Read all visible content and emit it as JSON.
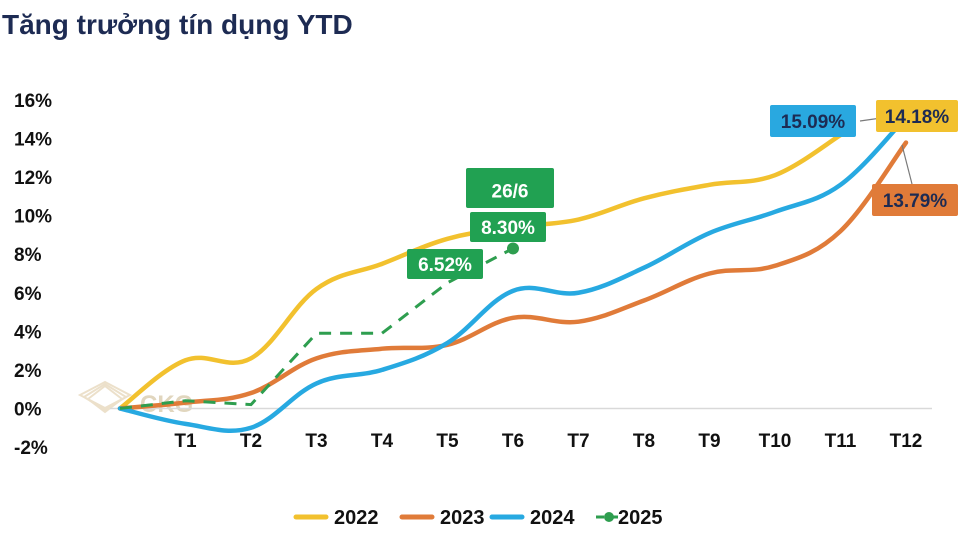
{
  "chart_data": {
    "type": "line",
    "title": "Tăng trưởng tín dụng YTD",
    "categories": [
      "T1",
      "T2",
      "T3",
      "T4",
      "T5",
      "T6",
      "T7",
      "T8",
      "T9",
      "T10",
      "T11",
      "T12"
    ],
    "yticks": [
      "16%",
      "14%",
      "12%",
      "10%",
      "8%",
      "6%",
      "4%",
      "2%",
      "0%",
      "-2%"
    ],
    "ylim": [
      -2,
      16
    ],
    "grid": false,
    "legend_position": "bottom",
    "series": [
      {
        "name": "2022",
        "color": "#f2c12e",
        "dashed": false,
        "points": [
          [
            0,
            0
          ],
          [
            1,
            2.5
          ],
          [
            2,
            2.6
          ],
          [
            3,
            6.2
          ],
          [
            4,
            7.5
          ],
          [
            5,
            8.8
          ],
          [
            6,
            9.4
          ],
          [
            7,
            9.8
          ],
          [
            8,
            10.9
          ],
          [
            9,
            11.6
          ],
          [
            10,
            12.1
          ],
          [
            11,
            14.18
          ]
        ]
      },
      {
        "name": "2023",
        "color": "#e07b39",
        "dashed": false,
        "points": [
          [
            0,
            0
          ],
          [
            1,
            0.3
          ],
          [
            2,
            0.8
          ],
          [
            3,
            2.6
          ],
          [
            4,
            3.1
          ],
          [
            5,
            3.3
          ],
          [
            6,
            4.7
          ],
          [
            7,
            4.5
          ],
          [
            8,
            5.6
          ],
          [
            9,
            7.0
          ],
          [
            10,
            7.4
          ],
          [
            11,
            9.2
          ],
          [
            12,
            13.79
          ]
        ]
      },
      {
        "name": "2024",
        "color": "#27a9e1",
        "dashed": false,
        "points": [
          [
            0,
            0
          ],
          [
            1,
            -0.8
          ],
          [
            2,
            -1.0
          ],
          [
            3,
            1.3
          ],
          [
            4,
            2.0
          ],
          [
            5,
            3.4
          ],
          [
            6,
            6.1
          ],
          [
            7,
            6.0
          ],
          [
            8,
            7.3
          ],
          [
            9,
            9.1
          ],
          [
            10,
            10.2
          ],
          [
            11,
            11.6
          ],
          [
            12,
            15.09
          ]
        ]
      },
      {
        "name": "2025",
        "color": "#2e9e4f",
        "dashed": true,
        "points": [
          [
            0,
            0
          ],
          [
            1,
            0.4
          ],
          [
            2,
            0.2
          ],
          [
            3,
            3.9
          ],
          [
            4,
            3.9
          ],
          [
            5,
            6.52
          ],
          [
            6,
            8.3
          ]
        ]
      }
    ],
    "annotations": [
      {
        "text": "26/6",
        "bg": "#21a152",
        "color": "#ffffff"
      },
      {
        "text": "8.30%",
        "bg": "#21a152",
        "color": "#ffffff"
      },
      {
        "text": "6.52%",
        "bg": "#21a152",
        "color": "#ffffff"
      },
      {
        "text": "15.09%",
        "bg": "#29a8e0",
        "color": "#1d2b53"
      },
      {
        "text": "14.18%",
        "bg": "#f2c12e",
        "color": "#1d2b53"
      },
      {
        "text": "13.79%",
        "bg": "#e07b39",
        "color": "#1d2b53"
      }
    ],
    "watermark": "CKG"
  }
}
